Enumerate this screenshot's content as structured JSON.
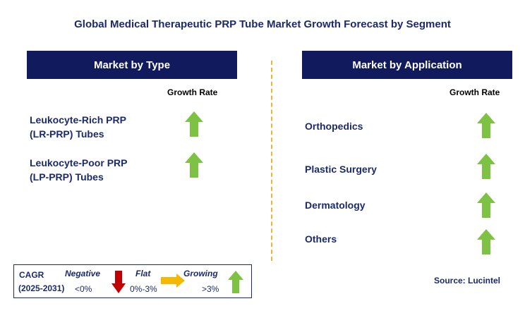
{
  "title": "Global Medical Therapeutic PRP Tube Market Growth Forecast by Segment",
  "left_panel": {
    "header": "Market by Type",
    "growth_rate_label": "Growth Rate",
    "items": [
      {
        "line1": "Leukocyte-Rich PRP",
        "line2": "(LR-PRP) Tubes",
        "trend": "up-arrow-icon"
      },
      {
        "line1": "Leukocyte-Poor PRP",
        "line2": "(LP-PRP) Tubes",
        "trend": "up-arrow-icon"
      }
    ]
  },
  "right_panel": {
    "header": "Market by Application",
    "growth_rate_label": "Growth Rate",
    "items": [
      {
        "label": "Orthopedics",
        "trend": "up-arrow-icon"
      },
      {
        "label": "Plastic Surgery",
        "trend": "up-arrow-icon"
      },
      {
        "label": "Dermatology",
        "trend": "up-arrow-icon"
      },
      {
        "label": "Others",
        "trend": "up-arrow-icon"
      }
    ]
  },
  "legend": {
    "cagr_label": "CAGR",
    "period": "(2025-2031)",
    "negative_label": "Negative",
    "negative_value": "<0%",
    "flat_label": "Flat",
    "flat_value": "0%-3%",
    "growing_label": "Growing",
    "growing_value": ">3%"
  },
  "source": "Source: Lucintel",
  "colors": {
    "header_bg": "#101a5c",
    "text_navy": "#1b2a6b",
    "up_arrow": "#7dc242",
    "down_arrow": "#c00000",
    "flat_arrow": "#f5b800",
    "divider": "#f0b43a"
  }
}
